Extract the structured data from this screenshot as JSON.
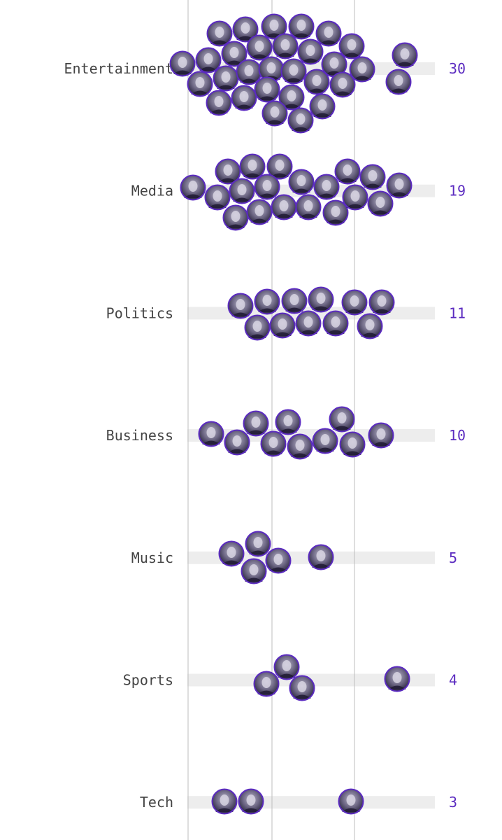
{
  "chart_data": {
    "type": "beeswarm",
    "categories": [
      "Entertainment",
      "Media",
      "Politics",
      "Business",
      "Music",
      "Sports",
      "Tech"
    ],
    "counts": [
      30,
      19,
      11,
      10,
      5,
      4,
      3
    ],
    "count_labels": [
      "30",
      "19",
      "11",
      "10",
      "5",
      "4",
      "3"
    ],
    "grid": "vertical",
    "gridline_count": 3,
    "track_color": "#ededed",
    "accent_color": "#5b2bc0",
    "marker": "portrait-photo-circle"
  }
}
